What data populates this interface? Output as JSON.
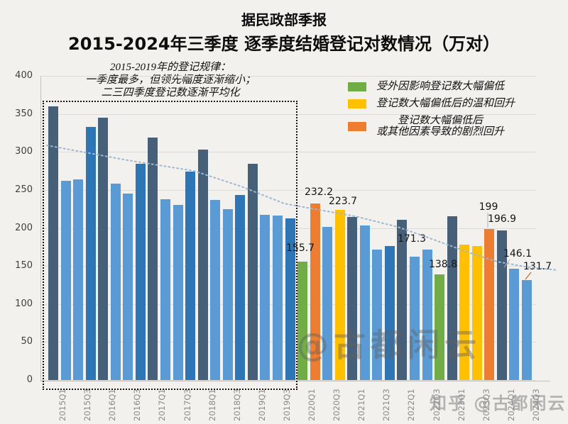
{
  "title": {
    "line1": "据民政部季报",
    "line2": "2015-2024年三季度 逐季度结婚登记对数情况（万对）"
  },
  "annotation": {
    "line1": "2015-2019年的登记规律：",
    "line2": "一季度最多，但领先幅度逐渐缩小；",
    "line3": "二三四季度登记数逐渐平均化"
  },
  "legend": {
    "items": [
      {
        "color": "#70ad47",
        "lines": [
          "受外因影响登记数大幅偏低"
        ]
      },
      {
        "color": "#ffc000",
        "lines": [
          "登记数大幅偏低后的温和回升"
        ]
      },
      {
        "color": "#ed7d31",
        "lines": [
          "登记数大幅偏低后",
          "或其他因素导致的剧烈回升"
        ]
      }
    ]
  },
  "watermarks": {
    "center": "@古都闲云",
    "bottom": "知乎 @古都闲云"
  },
  "chart_data": {
    "type": "bar",
    "title": "2015-2024年三季度 逐季度结婚登记对数情况（万对）",
    "source_note": "据民政部季报",
    "x": [
      "2015Q1",
      "2015Q2",
      "2015Q3",
      "2015Q4",
      "2016Q1",
      "2016Q2",
      "2016Q3",
      "2016Q4",
      "2017Q1",
      "2017Q2",
      "2017Q3",
      "2017Q4",
      "2018Q1",
      "2018Q2",
      "2018Q3",
      "2018Q4",
      "2019Q1",
      "2019Q2",
      "2019Q3",
      "2019Q4",
      "2020Q1",
      "2020Q2",
      "2020Q3",
      "2020Q4",
      "2021Q1",
      "2021Q2",
      "2021Q3",
      "2021Q4",
      "2022Q1",
      "2022Q2",
      "2022Q3",
      "2022Q4",
      "2023Q1",
      "2023Q2",
      "2023Q3",
      "2023Q4",
      "2024Q1",
      "2024Q2",
      "2024Q3"
    ],
    "values": [
      360,
      262,
      264,
      333,
      345,
      258,
      245,
      284,
      319,
      238,
      230,
      274,
      303,
      237,
      225,
      243,
      284,
      217,
      216,
      213,
      155.7,
      232.2,
      201.5,
      223.7,
      214,
      203,
      172,
      176,
      211,
      162,
      171.3,
      138.8,
      215,
      178,
      176,
      199,
      196.9,
      146.1,
      131.7
    ],
    "color_key": [
      "dark",
      "light",
      "light",
      "medium",
      "dark",
      "light",
      "light",
      "medium",
      "dark",
      "light",
      "light",
      "medium",
      "dark",
      "light",
      "light",
      "medium",
      "dark",
      "light",
      "light",
      "medium",
      "green",
      "orange",
      "light",
      "yellow",
      "dark",
      "light",
      "light",
      "medium",
      "dark",
      "light",
      "light",
      "green",
      "dark",
      "yellow",
      "yellow",
      "orange",
      "dark",
      "light",
      "light"
    ],
    "palette": {
      "dark": "#47607a",
      "light": "#5b9bd5",
      "medium": "#2e75b6",
      "green": "#70ad47",
      "yellow": "#ffc000",
      "orange": "#ed7d31"
    },
    "data_labels": {
      "2020Q1": "155.7",
      "2020Q2": "232.2",
      "2020Q4": "223.7",
      "2022Q3": "171.3",
      "2022Q4": "138.8",
      "2023Q4": "199",
      "2024Q1": "196.9",
      "2024Q2": "146.1",
      "2024Q3": "131.7"
    },
    "xtick_labels_shown": [
      "2015Q1",
      "2015Q3",
      "2016Q1",
      "2016Q3",
      "2017Q1",
      "2017Q3",
      "2018Q1",
      "2018Q3",
      "2019Q1",
      "2019Q3",
      "2020Q1",
      "2020Q3",
      "2021Q1",
      "2021Q3",
      "2022Q1",
      "2022Q3",
      "2023Q1",
      "2023Q3",
      "2024Q1",
      "2024Q3"
    ],
    "ylim": [
      0,
      400
    ],
    "ytick_step": 50,
    "grid": true,
    "legend_position": "top-right",
    "highlight_box_range": [
      "2015Q1",
      "2019Q4"
    ],
    "trendline": {
      "style": "dotted",
      "color": "#9db8d2",
      "approx_start_value": 308,
      "approx_end_value": 140
    }
  }
}
